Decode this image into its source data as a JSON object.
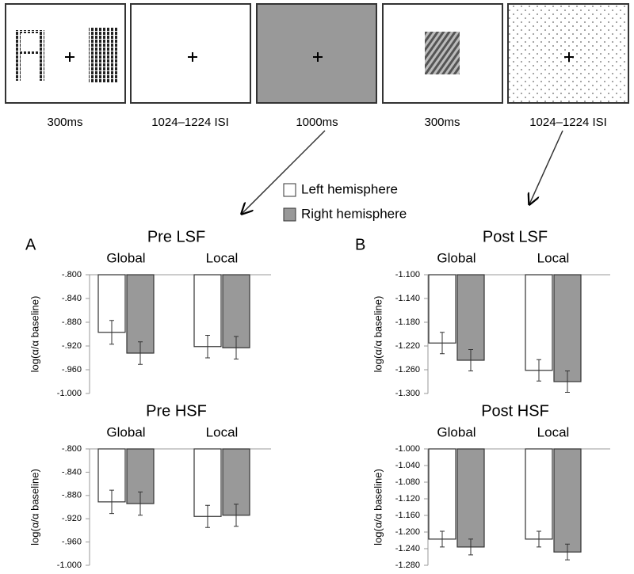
{
  "stimuli": [
    "300ms",
    "1024–1224 ISI",
    "1000ms",
    "300ms",
    "1024–1224 ISI"
  ],
  "legend": [
    {
      "name": "Left hemisphere",
      "color": "#ffffff"
    },
    {
      "name": "Right hemisphere",
      "color": "#999999"
    }
  ],
  "panel_labels": [
    "A",
    "B"
  ],
  "chart_data": [
    {
      "type": "bar",
      "title": "Pre LSF",
      "y_label": "log(α/α baseline)",
      "categories": [
        "Global",
        "Local"
      ],
      "series": [
        {
          "values": [
            -0.897,
            -0.921
          ],
          "errors": [
            0.02,
            0.019
          ]
        },
        {
          "values": [
            -0.932,
            -0.923
          ],
          "errors": [
            0.019,
            0.019
          ]
        }
      ],
      "ylim": [
        -1.0,
        -0.8
      ],
      "yticks": [
        {
          "value": -0.8,
          "label": "-.800"
        },
        {
          "value": -0.84,
          "label": "-.840"
        },
        {
          "value": -0.88,
          "label": "-.880"
        },
        {
          "value": -0.92,
          "label": "-.920"
        },
        {
          "value": -0.96,
          "label": "-.960"
        },
        {
          "value": -1.0,
          "label": "-1.000"
        }
      ]
    },
    {
      "type": "bar",
      "title": "Post LSF",
      "y_label": "log(α/α baseline)",
      "categories": [
        "Global",
        "Local"
      ],
      "series": [
        {
          "values": [
            -1.215,
            -1.261
          ],
          "errors": [
            0.018,
            0.018
          ]
        },
        {
          "values": [
            -1.244,
            -1.28
          ],
          "errors": [
            0.018,
            0.018
          ]
        }
      ],
      "ylim": [
        -1.3,
        -1.1
      ],
      "yticks": [
        {
          "value": -1.1,
          "label": "-1.100"
        },
        {
          "value": -1.14,
          "label": "-1.140"
        },
        {
          "value": -1.18,
          "label": "-1.180"
        },
        {
          "value": -1.22,
          "label": "-1.220"
        },
        {
          "value": -1.26,
          "label": "-1.260"
        },
        {
          "value": -1.3,
          "label": "-1.300"
        }
      ]
    },
    {
      "type": "bar",
      "title": "Pre HSF",
      "y_label": "log(α/α baseline)",
      "categories": [
        "Global",
        "Local"
      ],
      "series": [
        {
          "values": [
            -0.891,
            -0.916
          ],
          "errors": [
            0.02,
            0.019
          ]
        },
        {
          "values": [
            -0.894,
            -0.914
          ],
          "errors": [
            0.02,
            0.019
          ]
        }
      ],
      "ylim": [
        -1.0,
        -0.8
      ],
      "yticks": [
        {
          "value": -0.8,
          "label": "-.800"
        },
        {
          "value": -0.84,
          "label": "-.840"
        },
        {
          "value": -0.88,
          "label": "-.880"
        },
        {
          "value": -0.92,
          "label": "-.920"
        },
        {
          "value": -0.96,
          "label": "-.960"
        },
        {
          "value": -1.0,
          "label": "-1.000"
        }
      ]
    },
    {
      "type": "bar",
      "title": "Post HSF",
      "y_label": "log(α/α baseline)",
      "categories": [
        "Global",
        "Local"
      ],
      "series": [
        {
          "values": [
            -1.217,
            -1.217
          ],
          "errors": [
            0.019,
            0.019
          ]
        },
        {
          "values": [
            -1.236,
            -1.248
          ],
          "errors": [
            0.019,
            0.019
          ]
        }
      ],
      "ylim": [
        -1.28,
        -1.0
      ],
      "yticks": [
        {
          "value": -1.0,
          "label": "-1.000"
        },
        {
          "value": -1.04,
          "label": "-1.040"
        },
        {
          "value": -1.08,
          "label": "-1.080"
        },
        {
          "value": -1.12,
          "label": "-1.120"
        },
        {
          "value": -1.16,
          "label": "-1.160"
        },
        {
          "value": -1.2,
          "label": "-1.200"
        },
        {
          "value": -1.24,
          "label": "-1.240"
        },
        {
          "value": -1.28,
          "label": "-1.280"
        }
      ]
    }
  ]
}
